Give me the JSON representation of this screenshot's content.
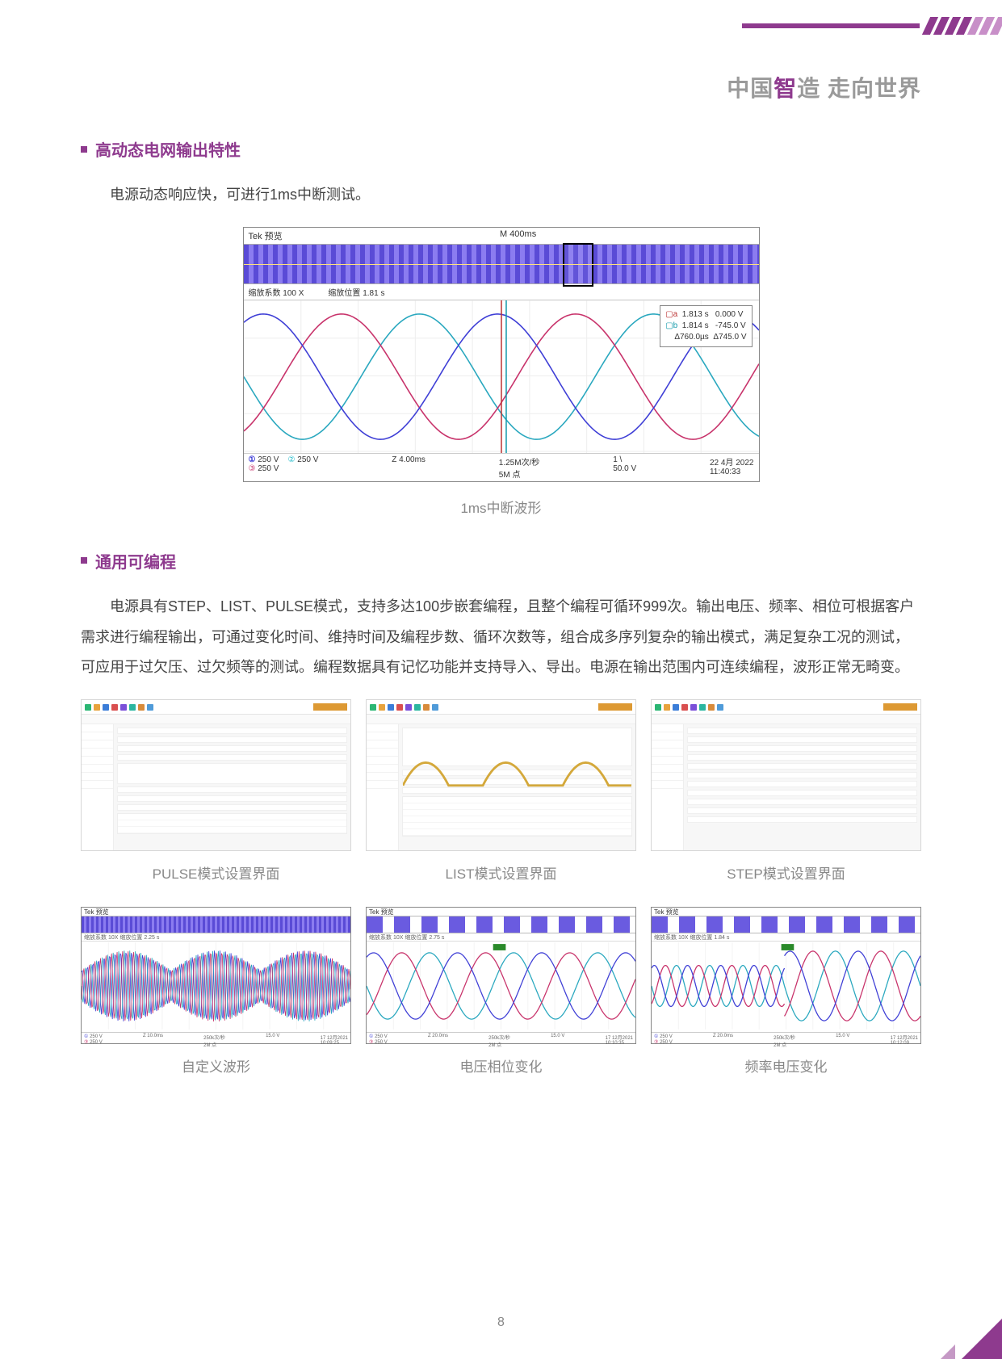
{
  "slogan": {
    "p1": "中国",
    "em": "智",
    "p2": "造  走向世界"
  },
  "section1": {
    "title": "高动态电网输出特性",
    "para": "电源动态响应快，可进行1ms中断测试。"
  },
  "scope": {
    "vendor": "Tek 预览",
    "timebase": "M 400ms",
    "zoom_factor_label": "缩放系数",
    "zoom_factor": "100 X",
    "zoom_pos_label": "缩放位置",
    "zoom_pos": "1.81 s",
    "readout": {
      "a_t": "1.813 s",
      "a_v": "0.000 V",
      "b_t": "1.814 s",
      "b_v": "-745.0 V",
      "d_t": "Δ760.0µs",
      "d_v": "Δ745.0 V"
    },
    "bottom": {
      "ch1": "250 V",
      "ch2": "250 V",
      "ch3": "250 V",
      "zdiv": "Z 4.00ms",
      "rate": "1.25M次/秒",
      "pts": "5M 点",
      "trig_ch": "1",
      "trig_v": "50.0 V",
      "date": "22 4月 2022",
      "time": "11:40:33"
    },
    "sine": {
      "colors": {
        "a": "#2aa8bf",
        "b": "#c8336b",
        "c": "#3f3fd6"
      },
      "amp": 78,
      "mid": 95,
      "periods": 2.2
    },
    "caption": "1ms中断波形"
  },
  "section2": {
    "title": "通用可编程",
    "para": "电源具有STEP、LIST、PULSE模式，支持多达100步嵌套编程，且整个编程可循环999次。输出电压、频率、相位可根据客户需求进行编程输出，可通过变化时间、维持时间及编程步数、循环次数等，组合成多序列复杂的输出模式，满足复杂工况的测试，可应用于过欠压、过欠频等的测试。编程数据具有记忆功能并支持导入、导出。电源在输出范围内可连续编程，波形正常无畸变。"
  },
  "soft_icons": [
    "#2bb673",
    "#e8a33d",
    "#3b7dd8",
    "#d94f4f",
    "#7a4fd9",
    "#2bb6a0",
    "#d88b3b",
    "#4f9bd9"
  ],
  "soft_captions": [
    "PULSE模式设置界面",
    "LIST模式设置界面",
    "STEP模式设置界面"
  ],
  "bscopes": {
    "vendor": "Tek 预览",
    "info_label": "缩放系数  10X        缩放位置",
    "colors": {
      "a": "#2aa8bf",
      "b": "#c8336b",
      "c": "#3f3fd6"
    },
    "b1": {
      "pos": "2.25 s",
      "strip": "dense"
    },
    "b2": {
      "pos": "2.75 s",
      "strip": "burst"
    },
    "b3": {
      "pos": "1.84 s",
      "strip": "burst"
    },
    "bottom": {
      "l": "250 V",
      "rate": "250k次/秒",
      "pts": "2M 点",
      "trig": "15.0 V",
      "t1": "Z 10.0ms",
      "t2": "Z 20.0ms",
      "d1": "17 12月2021",
      "h1": "10:09:25",
      "h2": "10:10:35",
      "h3": "10:12:09"
    },
    "captions": [
      "自定义波形",
      "电压相位变化",
      "频率电压变化"
    ]
  },
  "page": "8"
}
